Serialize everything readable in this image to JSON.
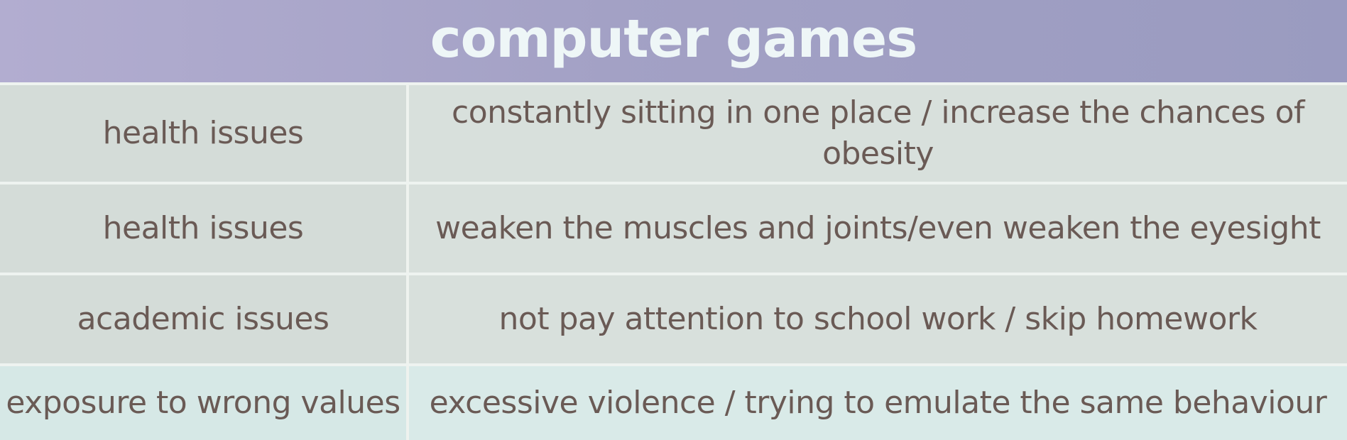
{
  "title": "computer games",
  "rows": [
    {
      "category": "health issues",
      "description": "constantly sitting in one place / increase the chances of obesity"
    },
    {
      "category": "health issues",
      "description": "weaken the muscles and joints/even weaken the eyesight"
    },
    {
      "category": "academic issues",
      "description": "not pay attention to school work / skip homework"
    },
    {
      "category": "exposure to wrong values",
      "description": "excessive violence / trying to emulate the same behaviour"
    }
  ],
  "colors": {
    "header_bg": "#a3a1c5",
    "title_text": "#eef6f7",
    "body_text": "#6a5a55"
  }
}
